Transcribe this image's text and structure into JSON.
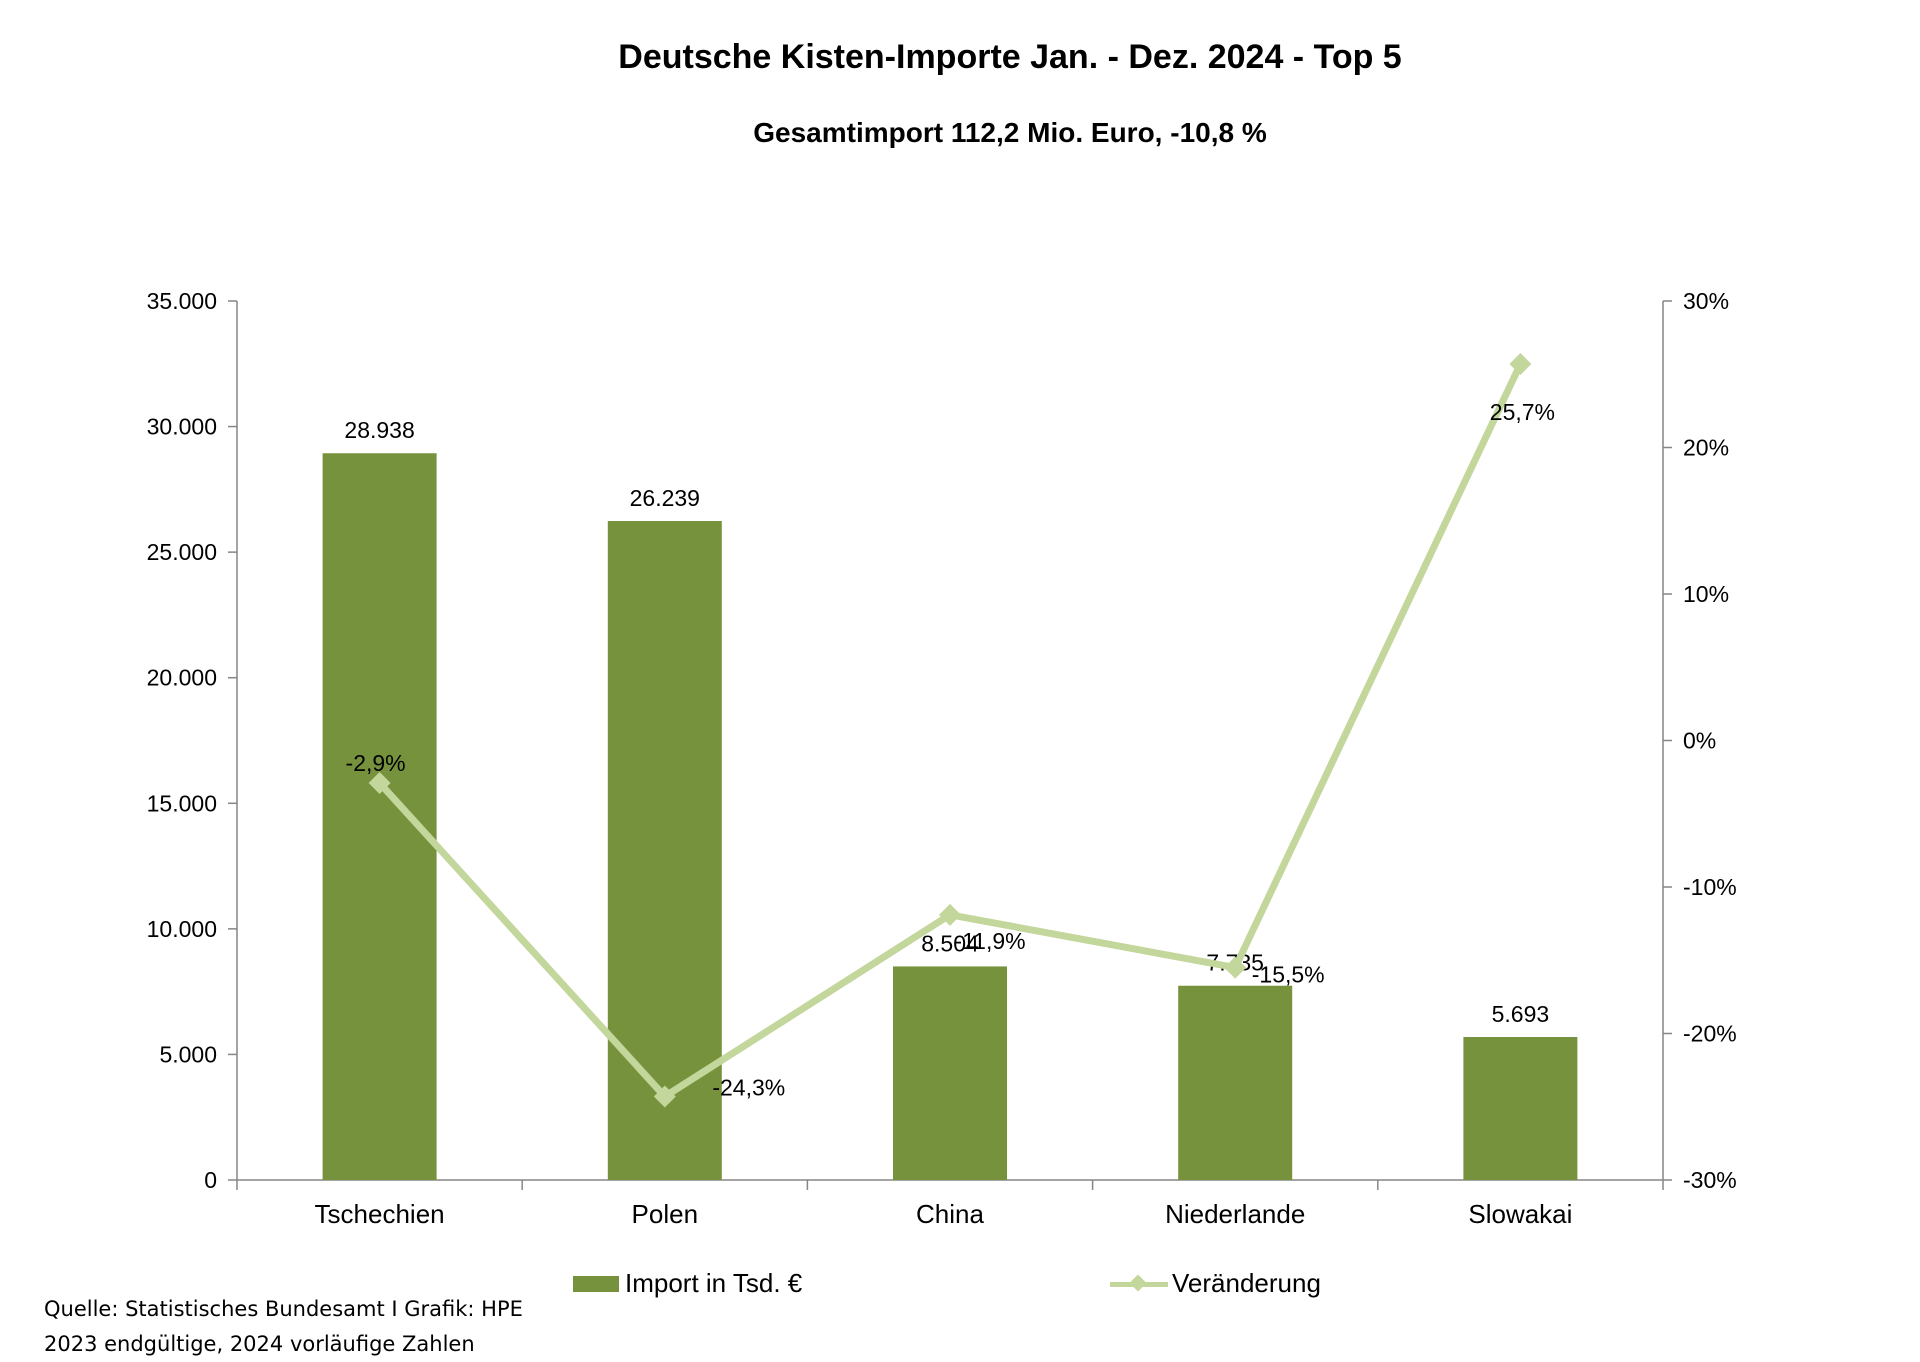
{
  "chart_data": {
    "type": "bar",
    "title": "Deutsche Kisten-Importe Jan. - Dez. 2024 -  Top 5",
    "subtitle": "Gesamtimport 112,2 Mio. Euro, -10,8 %",
    "categories": [
      "Tschechien",
      "Polen",
      "China",
      "Niederlande",
      "Slowakai"
    ],
    "series": [
      {
        "name": "Import in Tsd. €",
        "type": "bar",
        "axis": "left",
        "color": "#76923c",
        "values": [
          28938,
          26239,
          8504,
          7735,
          5693
        ],
        "labels": [
          "28.938",
          "26.239",
          "8.504",
          "7.735",
          "5.693"
        ]
      },
      {
        "name": "Veränderung",
        "type": "line",
        "axis": "right",
        "color": "#c3d69b",
        "marker": "diamond",
        "values": [
          -2.9,
          -24.3,
          -11.9,
          -15.5,
          25.7
        ],
        "labels": [
          "-2,9%",
          "-24,3%",
          "-11,9%",
          "-15,5%",
          "25,7%"
        ]
      }
    ],
    "y_left": {
      "ylim": [
        0,
        35000
      ],
      "ticks": [
        0,
        5000,
        10000,
        15000,
        20000,
        25000,
        30000,
        35000
      ],
      "tick_labels": [
        "0",
        "5.000",
        "10.000",
        "15.000",
        "20.000",
        "25.000",
        "30.000",
        "35.000"
      ]
    },
    "y_right": {
      "ylim": [
        -30,
        30
      ],
      "ticks": [
        -30,
        -20,
        -10,
        0,
        10,
        20,
        30
      ],
      "tick_labels": [
        "-30%",
        "-20%",
        "-10%",
        "0%",
        "10%",
        "20%",
        "30%"
      ]
    },
    "grid": false,
    "legend_position": "bottom"
  },
  "source_note": {
    "line1": "Quelle: Statistisches Bundesamt I Grafik: HPE",
    "line2": "2023 endgültige, 2024 vorläufige Zahlen"
  },
  "colors": {
    "bar": "#76923c",
    "line": "#c3d69b",
    "axis": "#868686"
  }
}
